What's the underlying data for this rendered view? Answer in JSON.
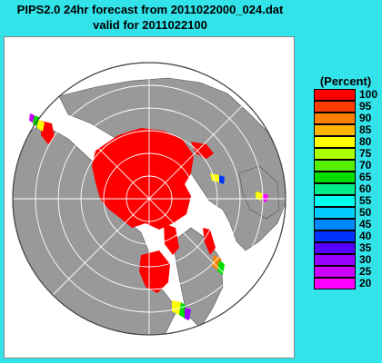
{
  "title": {
    "line1": "PIPS2.0 24hr forecast from 2011022000_024.dat",
    "line2": "valid for 2011022100"
  },
  "legend": {
    "title": "(Percent)",
    "items": [
      {
        "label": "100",
        "color": "#ff0000"
      },
      {
        "label": "95",
        "color": "#ff3c00"
      },
      {
        "label": "90",
        "color": "#ff8000"
      },
      {
        "label": "85",
        "color": "#ffb400"
      },
      {
        "label": "80",
        "color": "#ffff00"
      },
      {
        "label": "75",
        "color": "#aaff00"
      },
      {
        "label": "70",
        "color": "#55ee00"
      },
      {
        "label": "65",
        "color": "#00dd00"
      },
      {
        "label": "60",
        "color": "#00ee88"
      },
      {
        "label": "55",
        "color": "#00ffee"
      },
      {
        "label": "50",
        "color": "#00ccff"
      },
      {
        "label": "45",
        "color": "#0088ff"
      },
      {
        "label": "40",
        "color": "#0033ff"
      },
      {
        "label": "35",
        "color": "#5500ff"
      },
      {
        "label": "30",
        "color": "#9900ff"
      },
      {
        "label": "25",
        "color": "#cc00ff"
      },
      {
        "label": "20",
        "color": "#ff00ff"
      }
    ]
  },
  "map": {
    "ocean_color": "#ffffff",
    "land_color": "#999999",
    "grid_color": "#ffffff",
    "ice_color": "#ff0000"
  }
}
